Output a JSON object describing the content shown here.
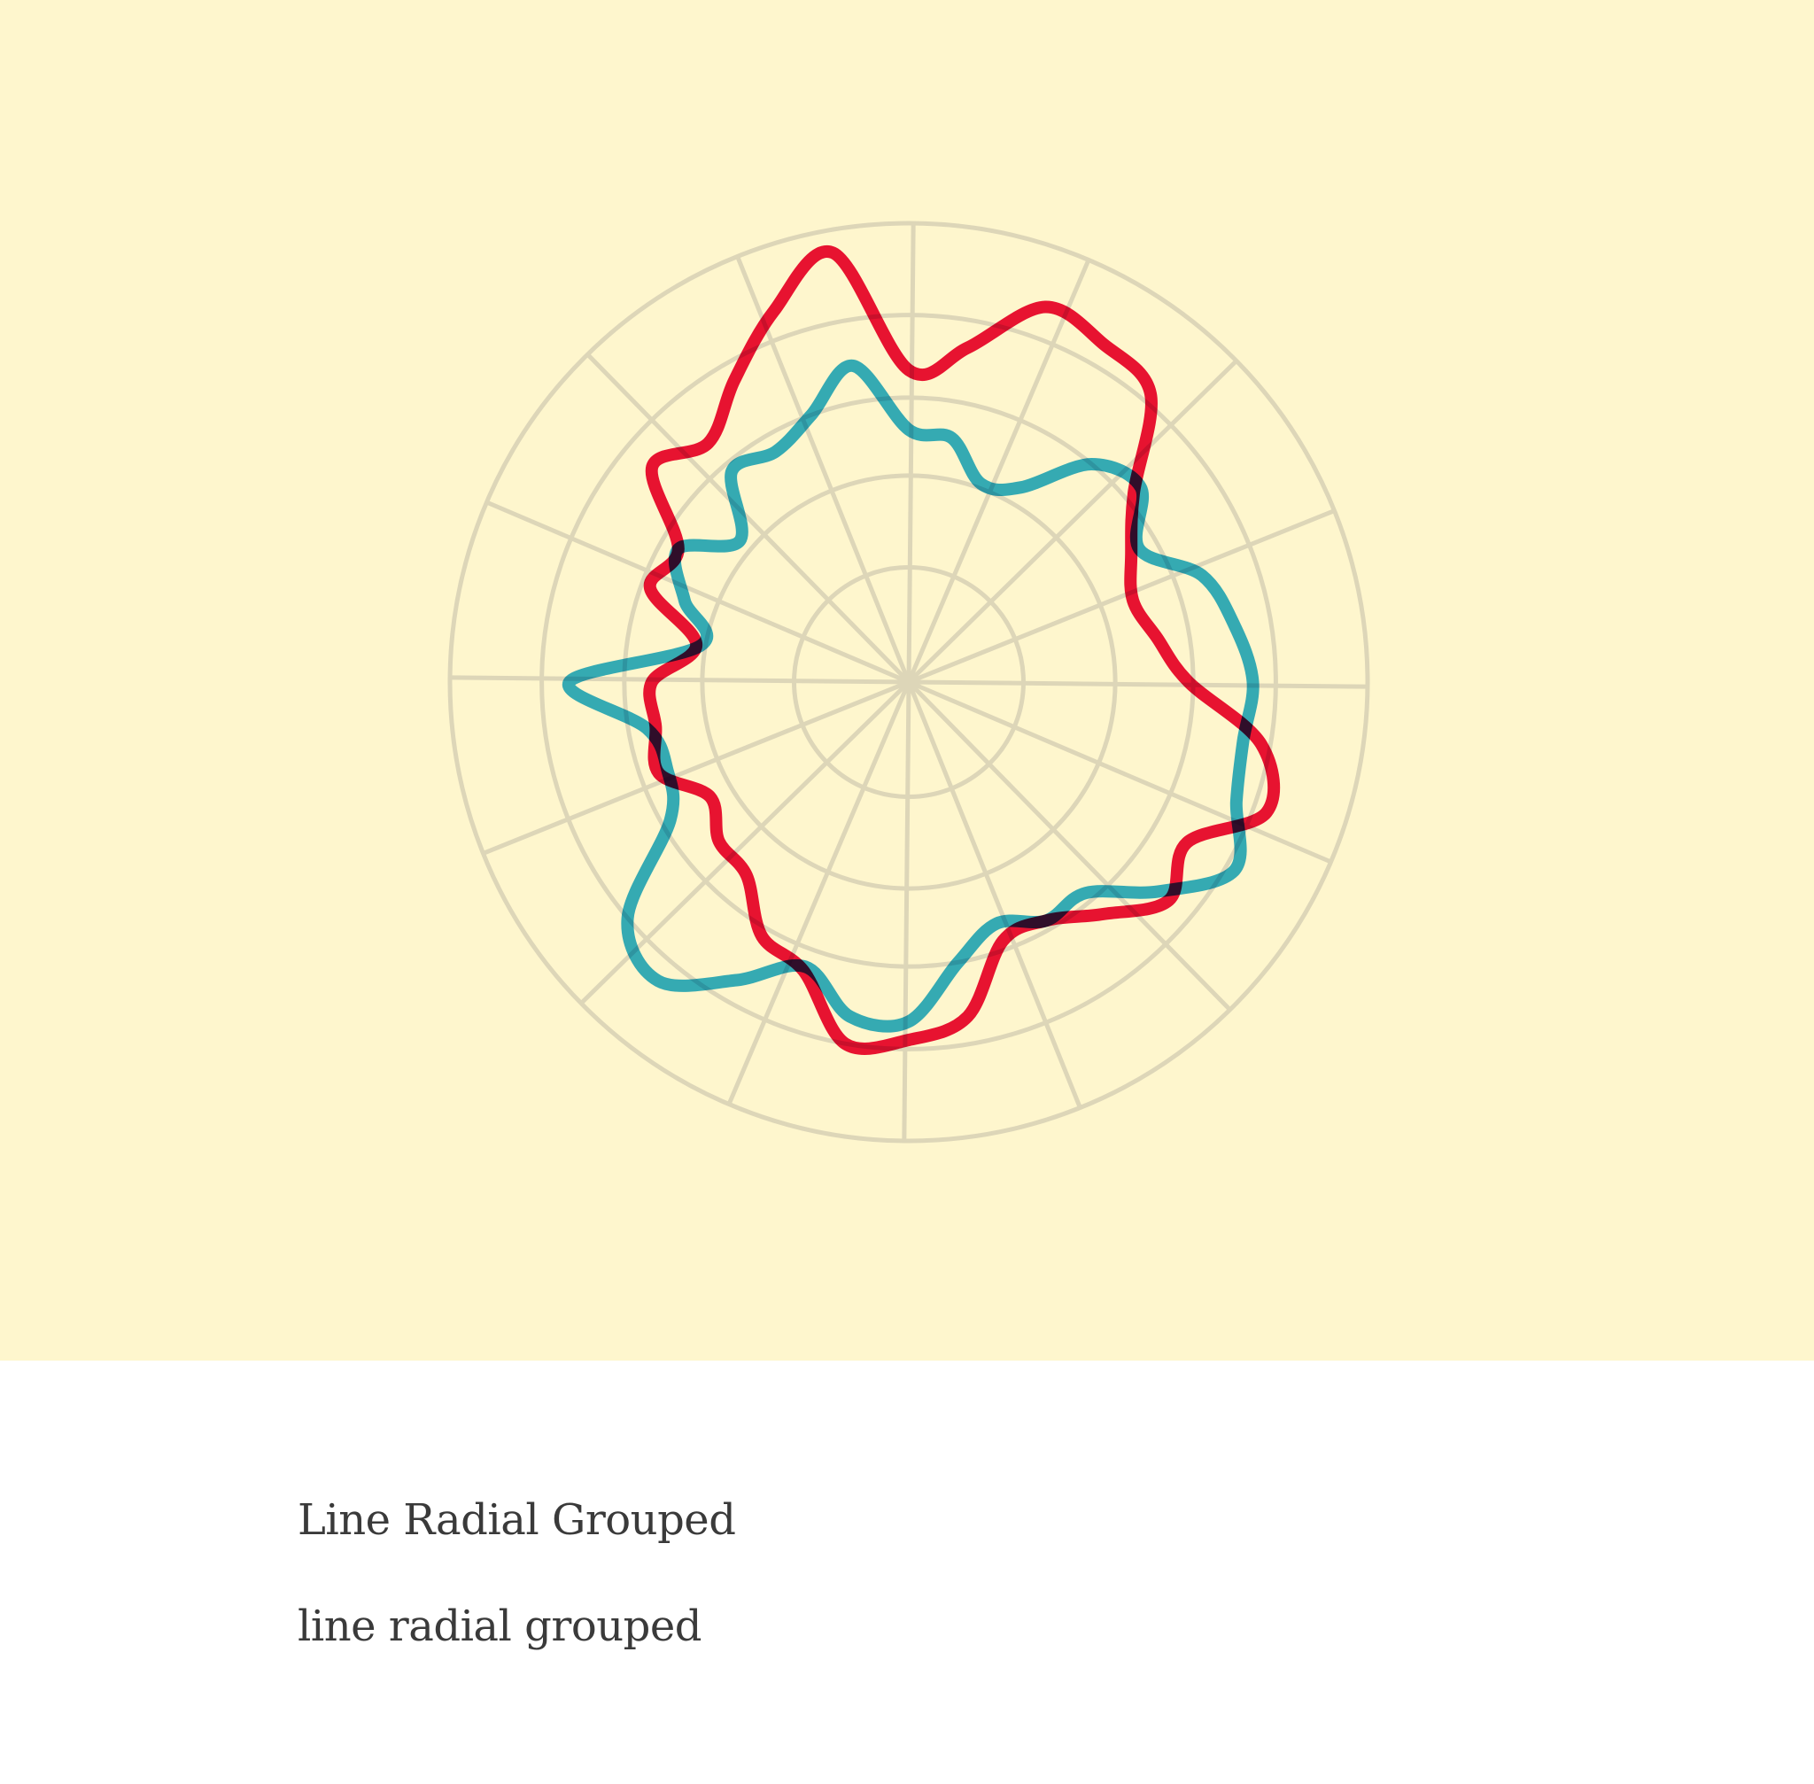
{
  "chart_data": {
    "type": "line",
    "subtype": "radial",
    "grid": true,
    "radius_range": [
      0,
      1
    ],
    "ring_values": [
      0.25,
      0.45,
      0.62,
      0.8,
      1.0
    ],
    "spoke_count": 16,
    "angles": [
      0,
      10,
      20,
      30,
      40,
      50,
      60,
      70,
      80,
      90,
      100,
      110,
      120,
      130,
      140,
      150,
      160,
      170,
      180,
      190,
      200,
      210,
      220,
      230,
      240,
      250,
      260,
      270,
      280,
      290,
      300,
      310,
      320,
      330,
      340,
      350
    ],
    "series": [
      {
        "name": "red",
        "color": "#e8133b",
        "values": [
          0.68,
          0.74,
          0.87,
          0.85,
          0.82,
          0.64,
          0.56,
          0.52,
          0.55,
          0.61,
          0.78,
          0.83,
          0.7,
          0.74,
          0.66,
          0.6,
          0.6,
          0.74,
          0.78,
          0.8,
          0.67,
          0.64,
          0.55,
          0.54,
          0.5,
          0.58,
          0.56,
          0.56,
          0.47,
          0.6,
          0.58,
          0.73,
          0.68,
          0.76,
          0.86,
          0.95
        ]
      },
      {
        "name": "blue",
        "color": "#35b0de",
        "values": [
          0.55,
          0.54,
          0.46,
          0.49,
          0.62,
          0.66,
          0.58,
          0.68,
          0.72,
          0.75,
          0.74,
          0.76,
          0.82,
          0.71,
          0.6,
          0.6,
          0.56,
          0.62,
          0.74,
          0.74,
          0.66,
          0.75,
          0.85,
          0.8,
          0.6,
          0.56,
          0.58,
          0.74,
          0.46,
          0.52,
          0.58,
          0.48,
          0.6,
          0.58,
          0.62,
          0.7
        ]
      }
    ],
    "title": "Line Radial Grouped",
    "subtitle": "line radial grouped",
    "colors": {
      "background": "#fef6cd",
      "grid": "#ddd6b8",
      "text": "#3a3a3a"
    }
  }
}
